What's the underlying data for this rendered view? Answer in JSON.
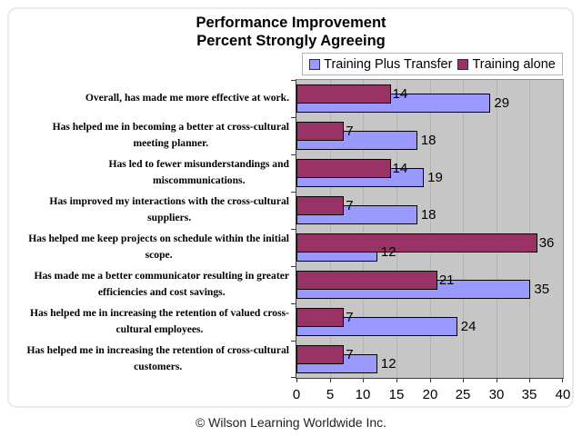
{
  "footer": "© Wilson Learning Worldwide Inc.",
  "chart_data": {
    "type": "bar",
    "orientation": "horizontal",
    "title": "Performance Improvement",
    "subtitle": "Percent Strongly Agreeing",
    "categories": [
      "Overall, has made me more effective at work.",
      "Has helped me in becoming a better at cross-cultural\nmeeting planner.",
      "Has led to fewer misunderstandings and\nmiscommunications.",
      "Has improved my interactions with the cross-cultural\nsuppliers.",
      "Has helped me keep projects on schedule within the initial\nscope.",
      "Has made me a better communicator resulting in greater\nefficiencies and cost savings.",
      "Has helped me in increasing the retention of valued cross-\ncultural employees.",
      "Has helped me in increasing the retention of cross-cultural\ncustomers."
    ],
    "series": [
      {
        "name": "Training Plus Transfer",
        "color": "#9999FF",
        "values": [
          29,
          18,
          19,
          18,
          12,
          35,
          24,
          12
        ]
      },
      {
        "name": "Training alone",
        "color": "#993366",
        "values": [
          14,
          7,
          14,
          7,
          36,
          21,
          7,
          7
        ]
      }
    ],
    "xlim": [
      0,
      40
    ],
    "xticks": [
      0,
      5,
      10,
      15,
      20,
      25,
      30,
      35,
      40
    ],
    "grid": true,
    "legend_position": "top-right",
    "plot_bg": "#C6C6C6",
    "gridline_color": "#B3B3B3",
    "bar_overlap_percent": 50,
    "data_labels": "outside-end"
  }
}
